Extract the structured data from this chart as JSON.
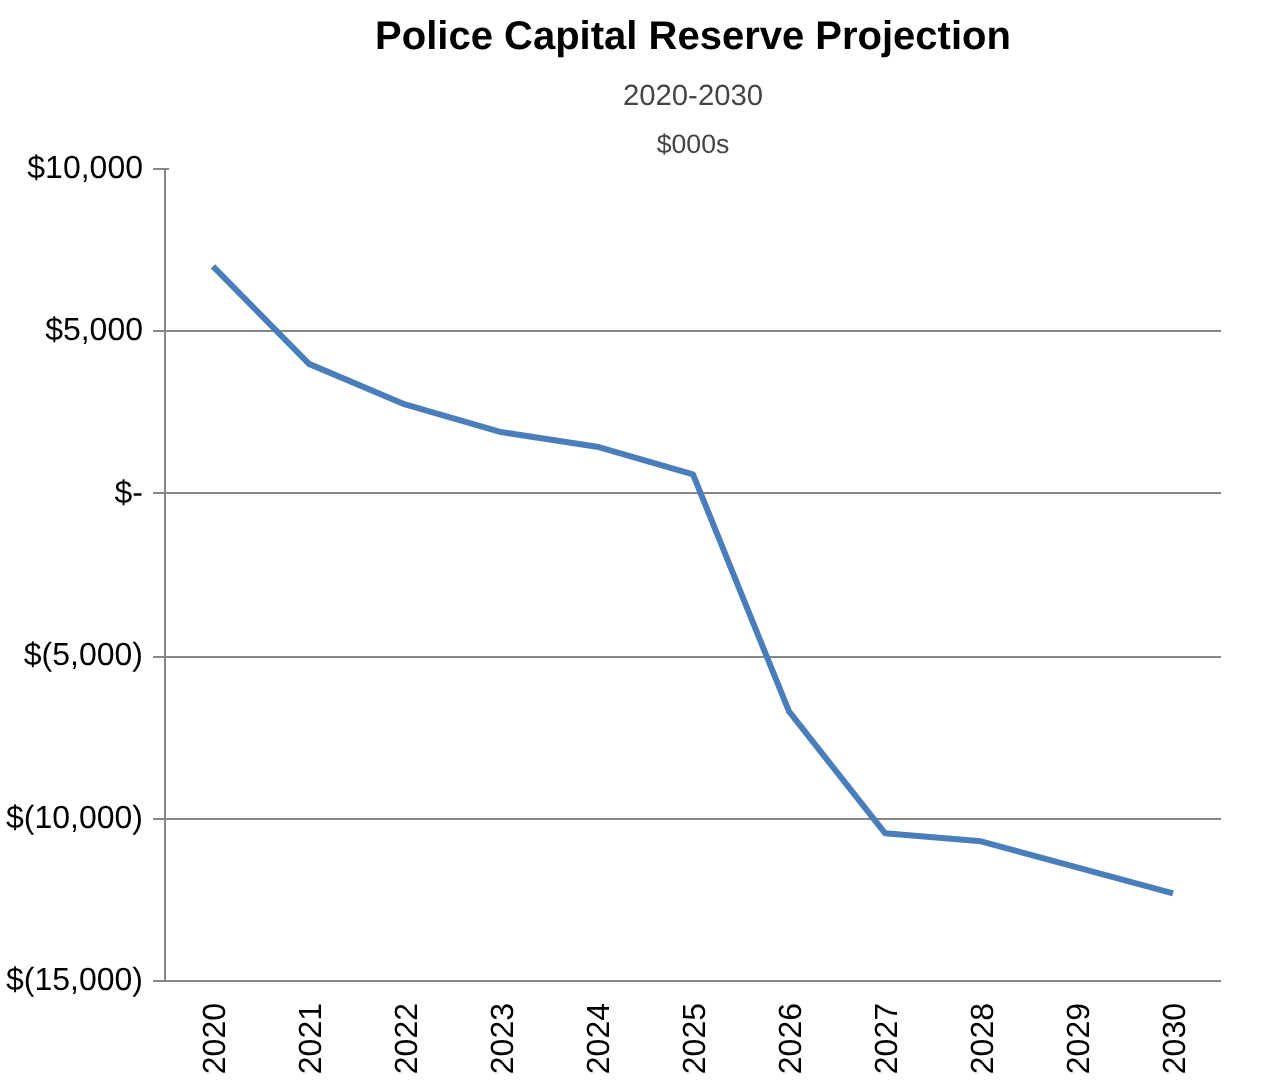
{
  "chart_data": {
    "type": "line",
    "title": "Police Capital Reserve Projection",
    "subtitle": "2020-2030",
    "annotations": [
      "$000s"
    ],
    "categories": [
      "2020",
      "2021",
      "2022",
      "2023",
      "2024",
      "2025",
      "2026",
      "2027",
      "2028",
      "2029",
      "2030"
    ],
    "series": [
      {
        "color": "#4a7ebb",
        "values": [
          7000,
          4000,
          2750,
          1900,
          1450,
          600,
          -6700,
          -10450,
          -10700,
          -11500,
          -12300
        ]
      }
    ],
    "ylim": [
      -15000,
      10000
    ],
    "yticks": [
      {
        "value": -15000,
        "label": "$(15,000)"
      },
      {
        "value": -10000,
        "label": "$(10,000)"
      },
      {
        "value": -5000,
        "label": "$(5,000)"
      },
      {
        "value": 0,
        "label": "$-"
      },
      {
        "value": 5000,
        "label": "$5,000"
      },
      {
        "value": 10000,
        "label": "$10,000"
      }
    ],
    "grid": "y",
    "marker": "none",
    "line_style": "solid"
  }
}
